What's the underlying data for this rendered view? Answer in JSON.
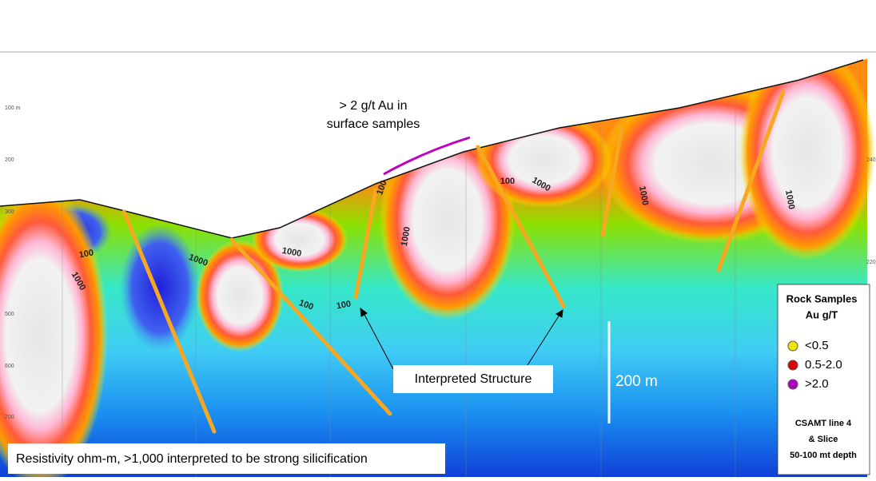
{
  "annotations": {
    "surface_samples": [
      "> 2 g/t Au in",
      "surface samples"
    ],
    "interpreted_structure": "Interpreted Structure",
    "scale_bar": "200 m",
    "caption": "Resistivity ohm-m,  >1,000 interpreted to be strong silicification"
  },
  "legend": {
    "title": [
      "Rock Samples",
      "Au g/T"
    ],
    "items": [
      {
        "label": "<0.5",
        "color": "#f2e600"
      },
      {
        "label": "0.5-2.0",
        "color": "#e00000"
      },
      {
        "label": ">2.0",
        "color": "#b000c0"
      }
    ],
    "note": [
      "CSAMT line 4",
      "& Slice",
      "50-100 mt depth"
    ]
  },
  "depth_labels": [
    "100 m",
    "200",
    "300",
    "500",
    "600",
    "700"
  ],
  "right_labels": [
    "240",
    "220"
  ],
  "contour_labels": [
    "100",
    "1000",
    "1000",
    "1000",
    "100",
    "100",
    "1000",
    "100",
    "100",
    "1000",
    "1000",
    "1000"
  ]
}
